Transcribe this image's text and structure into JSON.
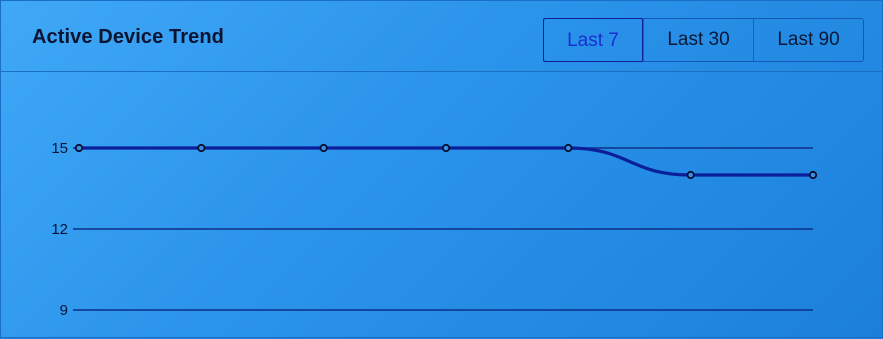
{
  "widget": {
    "title": "Active Device Trend"
  },
  "range_buttons": [
    {
      "label": "Last 7",
      "active": true
    },
    {
      "label": "Last 30",
      "active": false
    },
    {
      "label": "Last 90",
      "active": false
    }
  ],
  "chart_data": {
    "type": "line",
    "title": "",
    "xlabel": "",
    "ylabel": "",
    "y_ticks": [
      15,
      12,
      9
    ],
    "ylim": [
      9,
      15
    ],
    "grid": true,
    "x": [
      1,
      2,
      3,
      4,
      5,
      6,
      7
    ],
    "series": [
      {
        "values": [
          15,
          15,
          15,
          15,
          15,
          14,
          14
        ]
      }
    ],
    "colors": {
      "line": "#0b1f9a",
      "grid": "#0e2e8a",
      "point_fill": "#3a8fe6"
    }
  }
}
